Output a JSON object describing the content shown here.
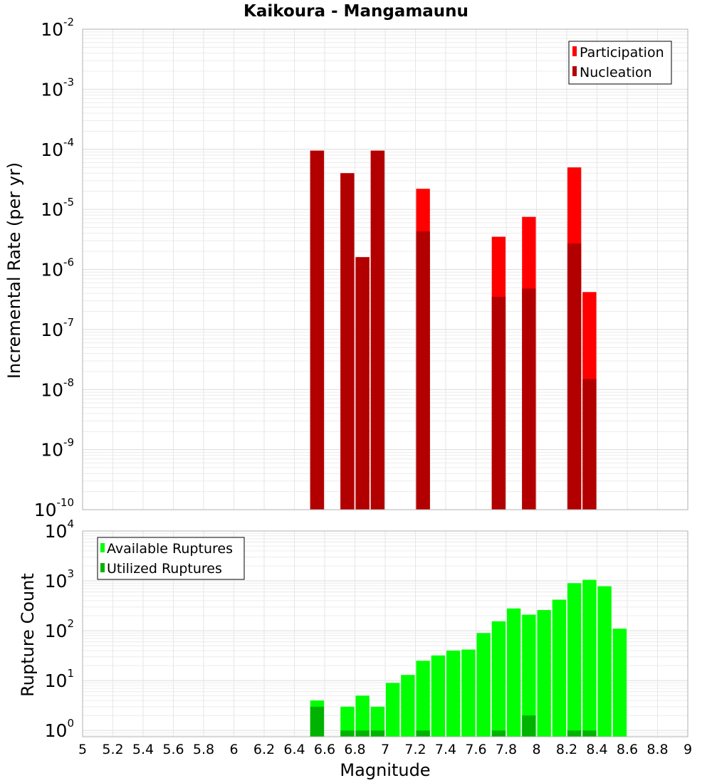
{
  "chart_data": [
    {
      "type": "bar",
      "title": "Kaikoura - Mangamaunu",
      "ylabel": "Incremental Rate (per yr)",
      "xlabel": "",
      "yscale": "log",
      "ylim": [
        1e-10,
        0.01
      ],
      "xlim": [
        5,
        9
      ],
      "y_ticks": [
        {
          "base": "10",
          "exp": "-10",
          "value": 1e-10
        },
        {
          "base": "10",
          "exp": "-9",
          "value": 1e-09
        },
        {
          "base": "10",
          "exp": "-8",
          "value": 1e-08
        },
        {
          "base": "10",
          "exp": "-7",
          "value": 1e-07
        },
        {
          "base": "10",
          "exp": "-6",
          "value": 1e-06
        },
        {
          "base": "10",
          "exp": "-5",
          "value": 1e-05
        },
        {
          "base": "10",
          "exp": "-4",
          "value": 0.0001
        },
        {
          "base": "10",
          "exp": "-3",
          "value": 0.001
        },
        {
          "base": "10",
          "exp": "-2",
          "value": 0.01
        }
      ],
      "grid": true,
      "legend_position": "top-right",
      "series": [
        {
          "name": "Participation",
          "color": "#ff0000",
          "x": [
            6.55,
            6.75,
            6.85,
            6.95,
            7.25,
            7.75,
            7.95,
            8.25,
            8.35
          ],
          "values": [
            9.5e-05,
            4e-05,
            1.6e-06,
            9.5e-05,
            2.2e-05,
            3.5e-06,
            7.5e-06,
            5e-05,
            4.2e-07
          ]
        },
        {
          "name": "Nucleation",
          "color": "#b20000",
          "x": [
            6.55,
            6.75,
            6.85,
            6.95,
            7.25,
            7.75,
            7.95,
            8.25,
            8.35
          ],
          "values": [
            9.5e-05,
            4e-05,
            1.6e-06,
            9.5e-05,
            4.3e-06,
            3.5e-07,
            4.8e-07,
            2.7e-06,
            1.5e-08
          ]
        }
      ]
    },
    {
      "type": "bar",
      "title": "",
      "ylabel": "Rupture Count",
      "xlabel": "Magnitude",
      "yscale": "log",
      "ylim": [
        0.75,
        10000
      ],
      "xlim": [
        5,
        9
      ],
      "x_ticks": [
        "5",
        "5.2",
        "5.4",
        "5.6",
        "5.8",
        "6",
        "6.2",
        "6.4",
        "6.6",
        "6.8",
        "7",
        "7.2",
        "7.4",
        "7.6",
        "7.8",
        "8",
        "8.2",
        "8.4",
        "8.6",
        "8.8",
        "9"
      ],
      "y_ticks": [
        {
          "base": "10",
          "exp": "0",
          "value": 1
        },
        {
          "base": "10",
          "exp": "1",
          "value": 10
        },
        {
          "base": "10",
          "exp": "2",
          "value": 100
        },
        {
          "base": "10",
          "exp": "3",
          "value": 1000
        },
        {
          "base": "10",
          "exp": "4",
          "value": 10000
        }
      ],
      "grid": true,
      "legend_position": "top-left",
      "series": [
        {
          "name": "Available Ruptures",
          "color": "#00ff00",
          "x": [
            6.55,
            6.75,
            6.85,
            6.95,
            7.05,
            7.15,
            7.25,
            7.35,
            7.45,
            7.55,
            7.65,
            7.75,
            7.85,
            7.95,
            8.05,
            8.15,
            8.25,
            8.35,
            8.45,
            8.55
          ],
          "values": [
            4,
            3,
            5,
            3,
            9,
            13,
            25,
            32,
            40,
            42,
            90,
            155,
            280,
            210,
            260,
            420,
            900,
            1050,
            780,
            110
          ]
        },
        {
          "name": "Utilized Ruptures",
          "color": "#00b300",
          "x": [
            6.55,
            6.75,
            6.85,
            6.95,
            7.25,
            7.75,
            7.95,
            8.25,
            8.35
          ],
          "values": [
            3,
            1,
            1,
            1,
            1,
            1,
            2,
            1,
            1
          ]
        }
      ]
    }
  ]
}
